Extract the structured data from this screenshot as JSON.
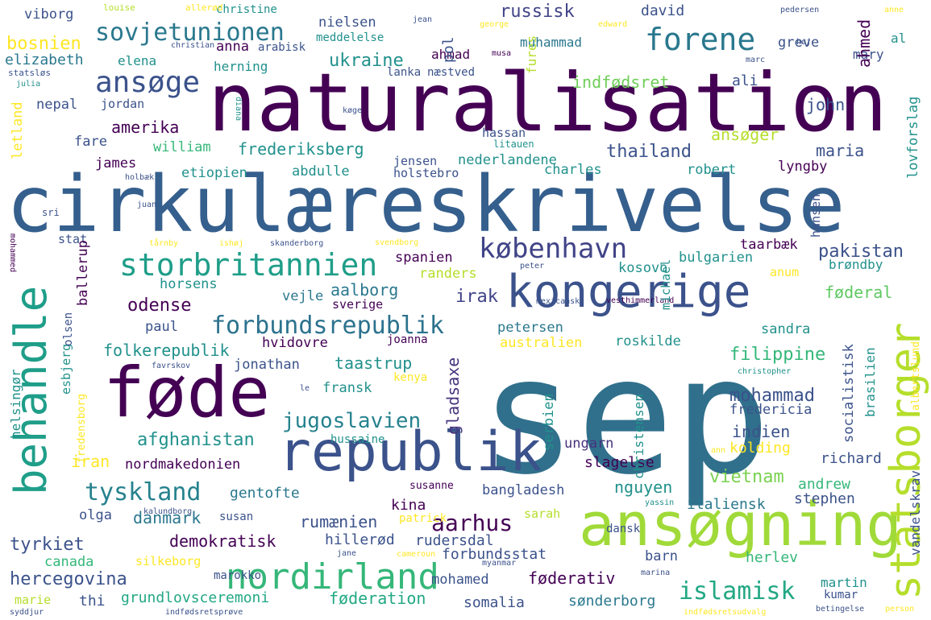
{
  "wordcloud": {
    "palette": [
      "#440154",
      "#3b528b",
      "#21918c",
      "#5ec962",
      "#fde725"
    ],
    "words": [
      {
        "text": "sep",
        "color": "#30708c"
      },
      {
        "text": "naturalisation",
        "color": "#440154"
      },
      {
        "text": "cirkulæreskrivelse",
        "color": "#355f8d"
      },
      {
        "text": "ansøgning",
        "color": "#a0da39"
      },
      {
        "text": "føde",
        "color": "#440154"
      },
      {
        "text": "republik",
        "color": "#3b528b"
      },
      {
        "text": "kongerige",
        "color": "#3b528b"
      },
      {
        "text": "behandle",
        "color": "#1f9e89"
      },
      {
        "text": "statsborger",
        "color": "#b5de2b"
      },
      {
        "text": "nordirland",
        "color": "#35b779"
      },
      {
        "text": "storbritannien",
        "color": "#1f9e89"
      },
      {
        "text": "forene",
        "color": "#2a788e"
      },
      {
        "text": "ansøge",
        "color": "#3b528b"
      },
      {
        "text": "forbundsrepublik",
        "color": "#2c728e"
      },
      {
        "text": "københavn",
        "color": "#414487"
      },
      {
        "text": "sovjetunionen",
        "color": "#2a788e"
      },
      {
        "text": "jugoslavien",
        "color": "#26828e"
      },
      {
        "text": "tyskland",
        "color": "#26828e"
      },
      {
        "text": "islamisk",
        "color": "#22a884"
      },
      {
        "text": "aarhus",
        "color": "#440154"
      },
      {
        "text": "afghanistan",
        "color": "#21918c"
      },
      {
        "text": "hercegovina",
        "color": "#3b528b"
      },
      {
        "text": "pakistan",
        "color": "#3b528b"
      },
      {
        "text": "mohammad",
        "color": "#3b528b"
      },
      {
        "text": "filippine",
        "color": "#35b779"
      },
      {
        "text": "folkerepublik",
        "color": "#21918c"
      },
      {
        "text": "frederiksberg",
        "color": "#21918c"
      },
      {
        "text": "ukraine",
        "color": "#21918c"
      },
      {
        "text": "russisk",
        "color": "#414487"
      },
      {
        "text": "thailand",
        "color": "#3b528b"
      },
      {
        "text": "vietnam",
        "color": "#7ad151"
      },
      {
        "text": "danmark",
        "color": "#2a788e"
      },
      {
        "text": "tyrkiet",
        "color": "#3b528b"
      },
      {
        "text": "rumænien",
        "color": "#3b528b"
      },
      {
        "text": "demokratisk",
        "color": "#440154"
      },
      {
        "text": "indfødsret",
        "color": "#6ece58"
      },
      {
        "text": "gladsaxe",
        "color": "#46337e"
      },
      {
        "text": "irak",
        "color": "#414487"
      },
      {
        "text": "odense",
        "color": "#440154"
      },
      {
        "text": "aalborg",
        "color": "#2a788e"
      },
      {
        "text": "amerika",
        "color": "#440154"
      },
      {
        "text": "bosnien",
        "color": "#fde725"
      },
      {
        "text": "elizabeth",
        "color": "#2a788e"
      },
      {
        "text": "maria",
        "color": "#3b528b"
      },
      {
        "text": "john",
        "color": "#3b528b"
      },
      {
        "text": "grundlovsceremoni",
        "color": "#22a884"
      },
      {
        "text": "føderation",
        "color": "#22a884"
      },
      {
        "text": "føderativ",
        "color": "#440154"
      },
      {
        "text": "sønderborg",
        "color": "#2a788e"
      },
      {
        "text": "somalia",
        "color": "#3b528b"
      },
      {
        "text": "taastrup",
        "color": "#21918c"
      },
      {
        "text": "ansøger",
        "color": "#b5de2b"
      },
      {
        "text": "nguyen",
        "color": "#21918c"
      },
      {
        "text": "iran",
        "color": "#fde725"
      },
      {
        "text": "nordmakedonien",
        "color": "#440154"
      },
      {
        "text": "canada",
        "color": "#35b779"
      },
      {
        "text": "kina",
        "color": "#440154"
      },
      {
        "text": "gentofte",
        "color": "#2a788e"
      },
      {
        "text": "bangladesh",
        "color": "#3b528b"
      },
      {
        "text": "italiensk",
        "color": "#2a788e"
      },
      {
        "text": "andrew",
        "color": "#35b779"
      },
      {
        "text": "stephen",
        "color": "#3b528b"
      },
      {
        "text": "richard",
        "color": "#3b528b"
      },
      {
        "text": "indien",
        "color": "#3b528b"
      },
      {
        "text": "fredericia",
        "color": "#3b528b"
      },
      {
        "text": "kolding",
        "color": "#fde725"
      },
      {
        "text": "slagelse",
        "color": "#440154"
      },
      {
        "text": "ungarn",
        "color": "#46337e"
      },
      {
        "text": "hillerød",
        "color": "#3b528b"
      },
      {
        "text": "rudersdal",
        "color": "#3b528b"
      },
      {
        "text": "forbundsstat",
        "color": "#3b528b"
      },
      {
        "text": "herlev",
        "color": "#35b779"
      },
      {
        "text": "barn",
        "color": "#3b528b"
      },
      {
        "text": "mohamed",
        "color": "#3b528b"
      },
      {
        "text": "martin",
        "color": "#21918c"
      },
      {
        "text": "kumar",
        "color": "#3b528b"
      },
      {
        "text": "marokko",
        "color": "#3b528b"
      },
      {
        "text": "silkeborg",
        "color": "#fde725"
      },
      {
        "text": "thi",
        "color": "#3b528b"
      },
      {
        "text": "marie",
        "color": "#b5de2b"
      },
      {
        "text": "olga",
        "color": "#3b528b"
      },
      {
        "text": "susan",
        "color": "#3b528b"
      },
      {
        "text": "sarah",
        "color": "#b5de2b"
      },
      {
        "text": "dansk",
        "color": "#3b528b"
      },
      {
        "text": "patrick",
        "color": "#fde725"
      },
      {
        "text": "susanne",
        "color": "#440154"
      },
      {
        "text": "horsens",
        "color": "#21918c"
      },
      {
        "text": "vejle",
        "color": "#2a788e"
      },
      {
        "text": "kosovo",
        "color": "#21918c"
      },
      {
        "text": "bulgarien",
        "color": "#21918c"
      },
      {
        "text": "taarbæk",
        "color": "#440154"
      },
      {
        "text": "anum",
        "color": "#fde725"
      },
      {
        "text": "føderal",
        "color": "#5ec962"
      },
      {
        "text": "brøndby",
        "color": "#21918c"
      },
      {
        "text": "randers",
        "color": "#b5de2b"
      },
      {
        "text": "spanien",
        "color": "#440154"
      },
      {
        "text": "sverige",
        "color": "#440154"
      },
      {
        "text": "petersen",
        "color": "#2a788e"
      },
      {
        "text": "sandra",
        "color": "#21918c"
      },
      {
        "text": "australien",
        "color": "#fde725"
      },
      {
        "text": "roskilde",
        "color": "#21918c"
      },
      {
        "text": "hvidovre",
        "color": "#440154"
      },
      {
        "text": "joanna",
        "color": "#440154"
      },
      {
        "text": "paul",
        "color": "#3b528b"
      },
      {
        "text": "jonathan",
        "color": "#3b528b"
      },
      {
        "text": "fransk",
        "color": "#21918c"
      },
      {
        "text": "kenya",
        "color": "#fde725"
      },
      {
        "text": "hussaine",
        "color": "#21918c"
      },
      {
        "text": "james",
        "color": "#440154"
      },
      {
        "text": "william",
        "color": "#35b779"
      },
      {
        "text": "etiopien",
        "color": "#21918c"
      },
      {
        "text": "abdulle",
        "color": "#21918c"
      },
      {
        "text": "jensen",
        "color": "#3b528b"
      },
      {
        "text": "holstebro",
        "color": "#3b528b"
      },
      {
        "text": "nederlandene",
        "color": "#21918c"
      },
      {
        "text": "charles",
        "color": "#21918c"
      },
      {
        "text": "robert",
        "color": "#21918c"
      },
      {
        "text": "lyngby",
        "color": "#440154"
      },
      {
        "text": "hassan",
        "color": "#3b528b"
      },
      {
        "text": "litauen",
        "color": "#21918c"
      },
      {
        "text": "fare",
        "color": "#3b528b"
      },
      {
        "text": "nepal",
        "color": "#3b528b"
      },
      {
        "text": "jordan",
        "color": "#3b528b"
      },
      {
        "text": "herning",
        "color": "#21918c"
      },
      {
        "text": "anna",
        "color": "#440154"
      },
      {
        "text": "arabisk",
        "color": "#3b528b"
      },
      {
        "text": "lanka",
        "color": "#3b528b"
      },
      {
        "text": "næstved",
        "color": "#3b528b"
      },
      {
        "text": "muhammad",
        "color": "#2a788e"
      },
      {
        "text": "ahmad",
        "color": "#440154"
      },
      {
        "text": "meddelelse",
        "color": "#21918c"
      },
      {
        "text": "nielsen",
        "color": "#3b528b"
      },
      {
        "text": "viborg",
        "color": "#3b528b"
      },
      {
        "text": "christine",
        "color": "#21918c"
      },
      {
        "text": "david",
        "color": "#3b528b"
      },
      {
        "text": "ali",
        "color": "#3b528b"
      },
      {
        "text": "greve",
        "color": "#3b528b"
      },
      {
        "text": "al",
        "color": "#21918c"
      },
      {
        "text": "mary",
        "color": "#3b528b"
      },
      {
        "text": "elena",
        "color": "#21918c"
      },
      {
        "text": "stat",
        "color": "#3b528b"
      },
      {
        "text": "sri",
        "color": "#3b528b"
      },
      {
        "text": "hansen",
        "color": "#3b528b"
      },
      {
        "text": "louise",
        "color": "#b5de2b"
      },
      {
        "text": "allerød",
        "color": "#fde725"
      },
      {
        "text": "jean",
        "color": "#3b528b"
      },
      {
        "text": "george",
        "color": "#fde725"
      },
      {
        "text": "edward",
        "color": "#fde725"
      },
      {
        "text": "christian",
        "color": "#3b528b"
      },
      {
        "text": "musa",
        "color": "#440154"
      },
      {
        "text": "pedersen",
        "color": "#3b528b"
      },
      {
        "text": "anne",
        "color": "#fde725"
      },
      {
        "text": "høj",
        "color": "#3b528b"
      },
      {
        "text": "marc",
        "color": "#3b528b"
      },
      {
        "text": "julia",
        "color": "#21918c"
      },
      {
        "text": "statsløs",
        "color": "#3b528b"
      },
      {
        "text": "køge",
        "color": "#3b528b"
      },
      {
        "text": "holbæk",
        "color": "#3b528b"
      },
      {
        "text": "juan",
        "color": "#3b528b"
      },
      {
        "text": "tårnby",
        "color": "#fde725"
      },
      {
        "text": "ishøj",
        "color": "#fde725"
      },
      {
        "text": "skanderborg",
        "color": "#3b528b"
      },
      {
        "text": "svendborg",
        "color": "#fde725"
      },
      {
        "text": "peter",
        "color": "#3b528b"
      },
      {
        "text": "mexicansk",
        "color": "#3b528b"
      },
      {
        "text": "vesthimmerland",
        "color": "#440154"
      },
      {
        "text": "favrskov",
        "color": "#3b528b"
      },
      {
        "text": "christopher",
        "color": "#21918c"
      },
      {
        "text": "le",
        "color": "#3b528b"
      },
      {
        "text": "ann",
        "color": "#fde725"
      },
      {
        "text": "yassin",
        "color": "#21918c"
      },
      {
        "text": "kalundborg",
        "color": "#3b528b"
      },
      {
        "text": "jane",
        "color": "#3b528b"
      },
      {
        "text": "cameroun",
        "color": "#fde725"
      },
      {
        "text": "myanmar",
        "color": "#3b528b"
      },
      {
        "text": "marina",
        "color": "#3b528b"
      },
      {
        "text": "syddjur",
        "color": "#3b528b"
      },
      {
        "text": "indfødsretsprøve",
        "color": "#3b528b"
      },
      {
        "text": "indfødsretsudvalg",
        "color": "#fde725"
      },
      {
        "text": "betingelse",
        "color": "#3b528b"
      },
      {
        "text": "person",
        "color": "#fde725"
      },
      {
        "text": "fures",
        "color": "#b5de2b"
      },
      {
        "text": "pol",
        "color": "#3b528b"
      },
      {
        "text": "ahmed",
        "color": "#440154"
      },
      {
        "text": "lovforslag",
        "color": "#21918c"
      },
      {
        "text": "letland",
        "color": "#fde725"
      },
      {
        "text": "ballerup",
        "color": "#440154"
      },
      {
        "text": "esbjerg",
        "color": "#21918c"
      },
      {
        "text": "helsingør",
        "color": "#21918c"
      },
      {
        "text": "fredensborg",
        "color": "#fde725"
      },
      {
        "text": "olsen",
        "color": "#3b528b"
      },
      {
        "text": "serbien",
        "color": "#21918c"
      },
      {
        "text": "christensen",
        "color": "#21918c"
      },
      {
        "text": "socialistisk",
        "color": "#3b528b"
      },
      {
        "text": "brasilien",
        "color": "#21918c"
      },
      {
        "text": "vandelskrav",
        "color": "#3b528b"
      },
      {
        "text": "albertslund",
        "color": "#fde725"
      },
      {
        "text": "michael",
        "color": "#21918c"
      },
      {
        "text": "mohammed",
        "color": "#440154"
      },
      {
        "text": "diana",
        "color": "#21918c"
      }
    ]
  }
}
